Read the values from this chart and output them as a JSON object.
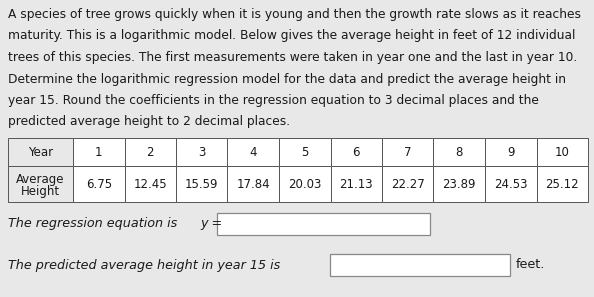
{
  "lines": [
    "A species of tree grows quickly when it is young and then the growth rate slows as it reaches",
    "maturity. This is a logarithmic model. Below gives the average height in feet of 12 individual",
    "trees of this species. The first measurements were taken in year one and the last in year 10.",
    "Determine the logarithmic regression model for the data and predict the average height in",
    "year 15. Round the coefficients in the regression equation to 3 decimal places and the",
    "predicted average height to 2 decimal places."
  ],
  "years": [
    1,
    2,
    3,
    4,
    5,
    6,
    7,
    8,
    9,
    10
  ],
  "heights": [
    "6.75",
    "12.45",
    "15.59",
    "17.84",
    "20.03",
    "21.13",
    "22.27",
    "23.89",
    "24.53",
    "25.12"
  ],
  "row1_label": "Year",
  "row2_label_line1": "Average",
  "row2_label_line2": "Height",
  "regression_label": "The regression equation is ",
  "regression_var": "y =",
  "prediction_label": "The predicted average height in year 15 is",
  "prediction_suffix": "feet.",
  "bg_color": "#e8e8e8",
  "text_color": "#1a1a1a",
  "box_color": "#ffffff",
  "box_edge": "#888888",
  "font_size_para": 8.8,
  "font_size_table": 8.5,
  "font_size_labels": 9.2
}
